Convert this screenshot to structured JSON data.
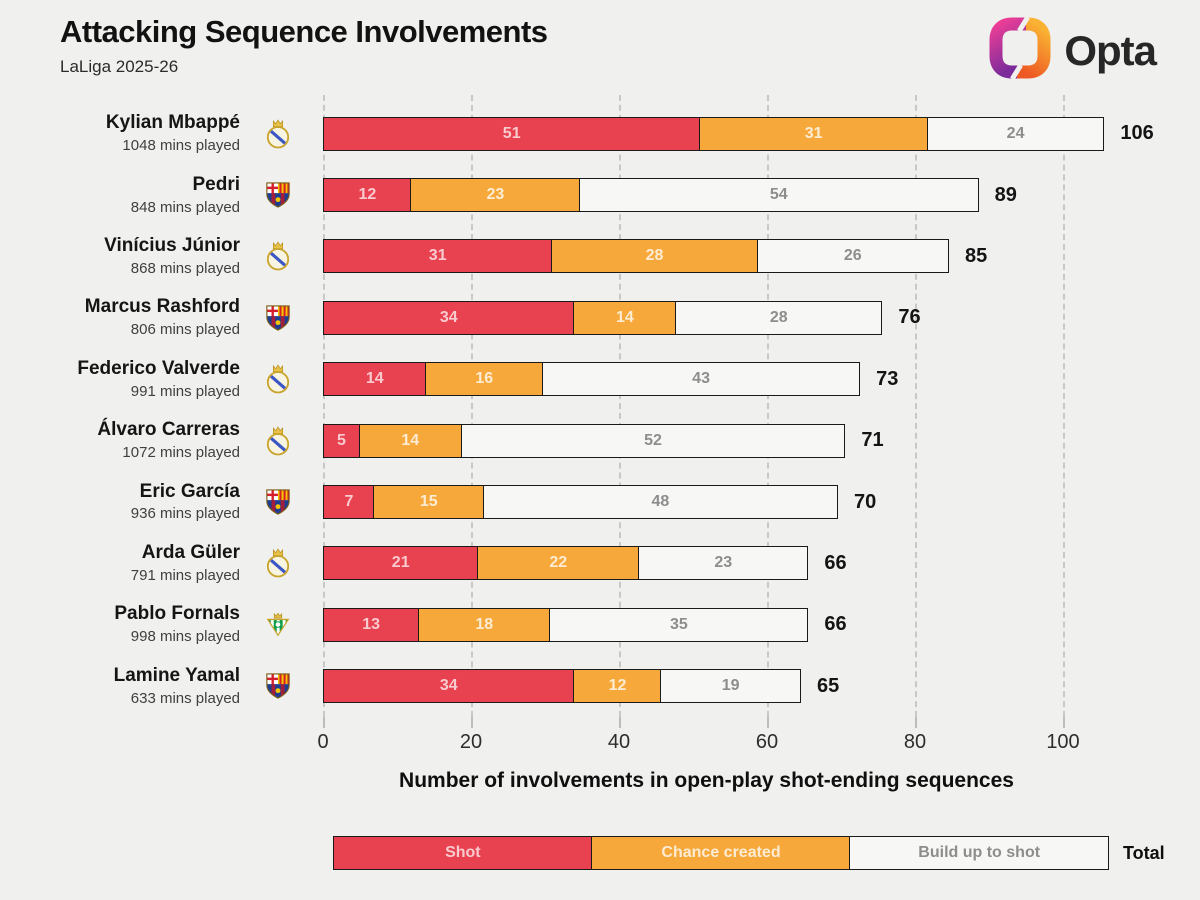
{
  "header": {
    "title": "Attacking Sequence Involvements",
    "subtitle": "LaLiga 2025-26",
    "brand": "Opta"
  },
  "chart_data": {
    "type": "bar",
    "stacked": true,
    "orientation": "horizontal",
    "title": "Attacking Sequence Involvements",
    "subtitle": "LaLiga 2025-26",
    "xlabel": "Number of involvements in open-play shot-ending sequences",
    "xticks": [
      0,
      20,
      40,
      60,
      80,
      100
    ],
    "xlim": [
      0,
      106
    ],
    "grid": "dashed-vertical",
    "legend": [
      "Shot",
      "Chance created",
      "Build up to shot"
    ],
    "legend_total_label": "Total",
    "colors": {
      "shot": "#e84150",
      "chance_created": "#f6a93a",
      "build_up_to_shot": "#f7f7f5",
      "background": "#f0f0ee"
    },
    "players": [
      {
        "name": "Kylian Mbappé",
        "mins": "1048 mins played",
        "club": "real-madrid",
        "shot": 51,
        "chance_created": 31,
        "build_up": 24,
        "total": 106
      },
      {
        "name": "Pedri",
        "mins": "848 mins played",
        "club": "barcelona",
        "shot": 12,
        "chance_created": 23,
        "build_up": 54,
        "total": 89
      },
      {
        "name": "Vinícius Júnior",
        "mins": "868 mins played",
        "club": "real-madrid",
        "shot": 31,
        "chance_created": 28,
        "build_up": 26,
        "total": 85
      },
      {
        "name": "Marcus Rashford",
        "mins": "806 mins played",
        "club": "barcelona",
        "shot": 34,
        "chance_created": 14,
        "build_up": 28,
        "total": 76
      },
      {
        "name": "Federico Valverde",
        "mins": "991 mins played",
        "club": "real-madrid",
        "shot": 14,
        "chance_created": 16,
        "build_up": 43,
        "total": 73
      },
      {
        "name": "Álvaro Carreras",
        "mins": "1072 mins played",
        "club": "real-madrid",
        "shot": 5,
        "chance_created": 14,
        "build_up": 52,
        "total": 71
      },
      {
        "name": "Eric García",
        "mins": "936 mins played",
        "club": "barcelona",
        "shot": 7,
        "chance_created": 15,
        "build_up": 48,
        "total": 70
      },
      {
        "name": "Arda Güler",
        "mins": "791 mins played",
        "club": "real-madrid",
        "shot": 21,
        "chance_created": 22,
        "build_up": 23,
        "total": 66
      },
      {
        "name": "Pablo Fornals",
        "mins": "998 mins played",
        "club": "real-betis",
        "shot": 13,
        "chance_created": 18,
        "build_up": 35,
        "total": 66
      },
      {
        "name": "Lamine Yamal",
        "mins": "633 mins played",
        "club": "barcelona",
        "shot": 34,
        "chance_created": 12,
        "build_up": 19,
        "total": 65
      }
    ]
  }
}
